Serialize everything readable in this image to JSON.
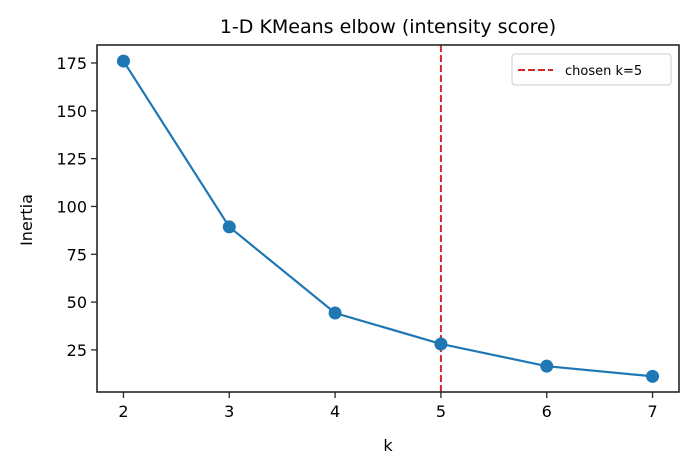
{
  "chart_data": {
    "type": "line",
    "title": "1-D KMeans elbow (intensity score)",
    "xlabel": "k",
    "ylabel": "Inertia",
    "x": [
      2,
      3,
      4,
      5,
      6,
      7
    ],
    "series": [
      {
        "name": "inertia",
        "values": [
          176.0,
          89.3,
          44.3,
          28.1,
          16.5,
          11.2
        ],
        "color": "#1f77b4",
        "marker": "circle"
      }
    ],
    "annotations": [
      {
        "type": "vline",
        "x": 5,
        "label": "chosen k=5",
        "color": "#d62728",
        "style": "dashed"
      }
    ],
    "xticks": [
      2,
      3,
      4,
      5,
      6,
      7
    ],
    "yticks": [
      25,
      50,
      75,
      100,
      125,
      150,
      175
    ],
    "xlim": [
      1.75,
      7.25
    ],
    "ylim": [
      3.0,
      184.4
    ],
    "grid": false,
    "legend": {
      "position": "upper right",
      "entries": [
        "chosen k=5"
      ]
    }
  }
}
